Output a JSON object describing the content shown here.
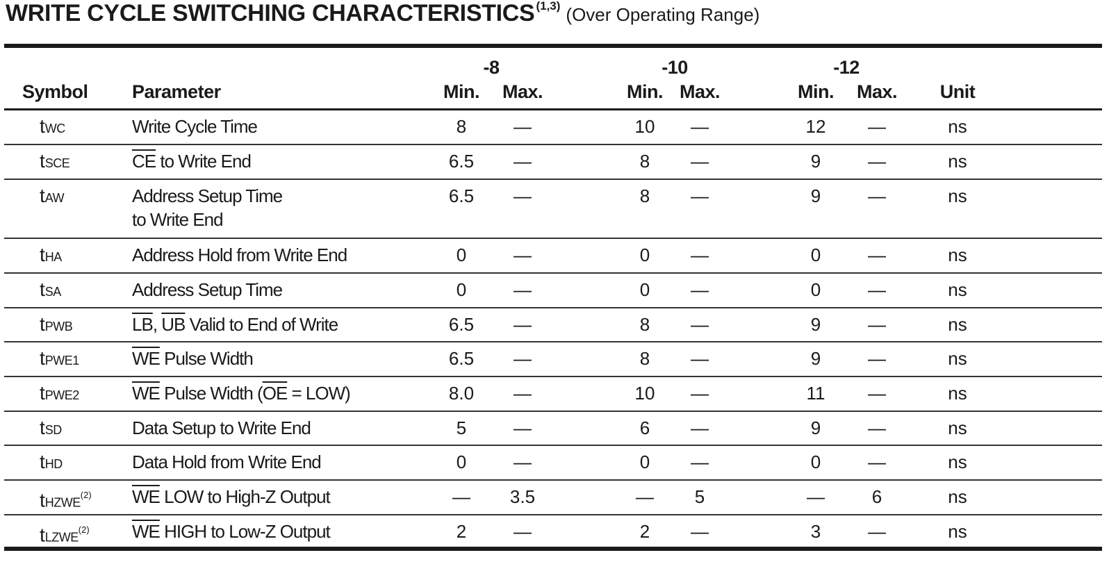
{
  "title": {
    "main": "WRITE CYCLE SWITCHING CHARACTERISTICS",
    "note": "(1,3)",
    "sub": "(Over Operating Range)"
  },
  "header": {
    "symbol": "Symbol",
    "parameter": "Parameter",
    "grades": [
      "-8",
      "-10",
      "-12"
    ],
    "min": "Min.",
    "max": "Max.",
    "unit": "Unit"
  },
  "rows": [
    {
      "t": "t",
      "sub": "WC",
      "sup": "",
      "param": [
        {
          "text": "Write Cycle Time",
          "ov": false
        }
      ],
      "param2": "",
      "vals": [
        "8",
        "—",
        "10",
        "—",
        "12",
        "—"
      ],
      "unit": "ns"
    },
    {
      "t": "t",
      "sub": "SCE",
      "sup": "",
      "param": [
        {
          "text": "CE",
          "ov": true
        },
        {
          "text": " to Write End",
          "ov": false
        }
      ],
      "param2": "",
      "vals": [
        "6.5",
        "—",
        "8",
        "—",
        "9",
        "—"
      ],
      "unit": "ns"
    },
    {
      "t": "t",
      "sub": "AW",
      "sup": "",
      "param": [
        {
          "text": "Address Setup Time",
          "ov": false
        }
      ],
      "param2": "to Write End",
      "vals": [
        "6.5",
        "—",
        "8",
        "—",
        "9",
        "—"
      ],
      "unit": "ns"
    },
    {
      "t": "t",
      "sub": "HA",
      "sup": "",
      "param": [
        {
          "text": "Address Hold from Write End",
          "ov": false
        }
      ],
      "param2": "",
      "vals": [
        "0",
        "—",
        "0",
        "—",
        "0",
        "—"
      ],
      "unit": "ns"
    },
    {
      "t": "t",
      "sub": "SA",
      "sup": "",
      "param": [
        {
          "text": "Address Setup Time",
          "ov": false
        }
      ],
      "param2": "",
      "vals": [
        "0",
        "—",
        "0",
        "—",
        "0",
        "—"
      ],
      "unit": "ns"
    },
    {
      "t": "t",
      "sub": "PWB",
      "sup": "",
      "param": [
        {
          "text": "LB",
          "ov": true
        },
        {
          "text": ", ",
          "ov": false
        },
        {
          "text": "UB",
          "ov": true
        },
        {
          "text": " Valid to End of Write",
          "ov": false
        }
      ],
      "param2": "",
      "vals": [
        "6.5",
        "—",
        "8",
        "—",
        "9",
        "—"
      ],
      "unit": "ns"
    },
    {
      "t": "t",
      "sub": "PWE1",
      "sup": "",
      "param": [
        {
          "text": "WE",
          "ov": true
        },
        {
          "text": " Pulse Width",
          "ov": false
        }
      ],
      "param2": "",
      "vals": [
        "6.5",
        "—",
        "8",
        "—",
        "9",
        "—"
      ],
      "unit": "ns"
    },
    {
      "t": "t",
      "sub": "PWE2",
      "sup": "",
      "param": [
        {
          "text": "WE",
          "ov": true
        },
        {
          "text": " Pulse Width (",
          "ov": false
        },
        {
          "text": "OE",
          "ov": true
        },
        {
          "text": " = LOW)",
          "ov": false
        }
      ],
      "param2": "",
      "vals": [
        "8.0",
        "—",
        "10",
        "—",
        "11",
        "—"
      ],
      "unit": "ns"
    },
    {
      "t": "t",
      "sub": "SD",
      "sup": "",
      "param": [
        {
          "text": "Data Setup to Write End",
          "ov": false
        }
      ],
      "param2": "",
      "vals": [
        "5",
        "—",
        "6",
        "—",
        "9",
        "—"
      ],
      "unit": "ns"
    },
    {
      "t": "t",
      "sub": "HD",
      "sup": "",
      "param": [
        {
          "text": "Data Hold from Write End",
          "ov": false
        }
      ],
      "param2": "",
      "vals": [
        "0",
        "—",
        "0",
        "—",
        "0",
        "—"
      ],
      "unit": "ns"
    },
    {
      "t": "t",
      "sub": "HZWE",
      "sup": "(2)",
      "param": [
        {
          "text": "WE",
          "ov": true
        },
        {
          "text": " LOW to High-Z Output",
          "ov": false
        }
      ],
      "param2": "",
      "vals": [
        "—",
        "3.5",
        "—",
        "5",
        "—",
        "6"
      ],
      "unit": "ns"
    },
    {
      "t": "t",
      "sub": "LZWE",
      "sup": "(2)",
      "param": [
        {
          "text": "WE",
          "ov": true
        },
        {
          "text": " HIGH to Low-Z Output",
          "ov": false
        }
      ],
      "param2": "",
      "vals": [
        "2",
        "—",
        "2",
        "—",
        "3",
        "—"
      ],
      "unit": "ns"
    }
  ]
}
